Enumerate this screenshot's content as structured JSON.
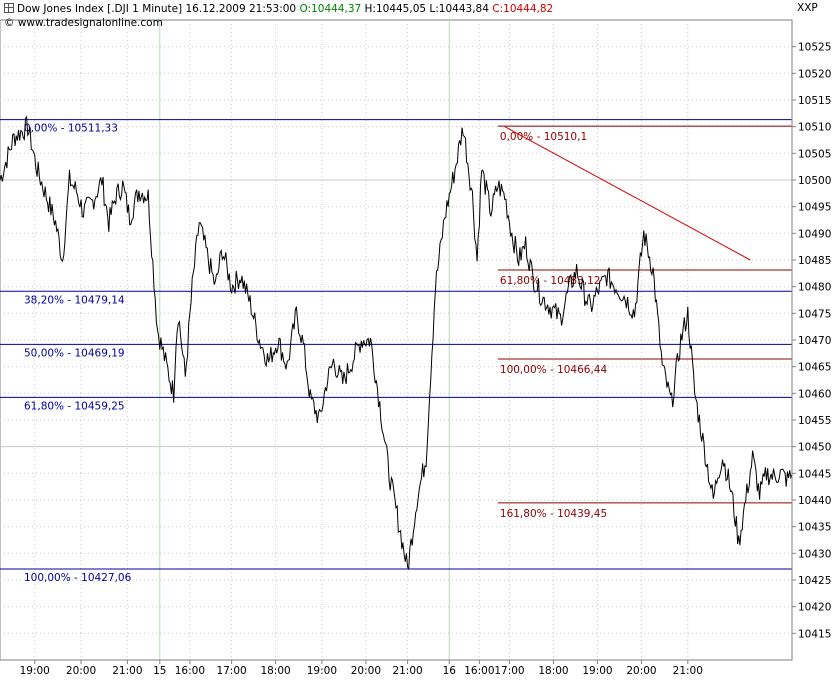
{
  "header": {
    "symbol": "Dow Jones Index [.DJI  1 Minute]",
    "datetime": "16.12.2009 21:53:00",
    "open": "O:10444,37",
    "high": "H:10445,05",
    "low": "L:10443,84",
    "close": "C:10444,82",
    "source": "© www.tradesignalonline.com",
    "corner_label": "XXP"
  },
  "colors": {
    "open": "#008000",
    "close": "#cc0000",
    "fib_blue": "#0000a0",
    "fib_red": "#8b0000",
    "trendline": "#d40000",
    "price": "#000000",
    "grid": "#c9c9c9",
    "session": "#b8dcb8"
  },
  "chart_data": {
    "type": "line",
    "title": "Dow Jones Index [.DJI 1 Minute]",
    "ylim": [
      10410,
      10530
    ],
    "y_ticks": [
      10415,
      10420,
      10425,
      10430,
      10435,
      10440,
      10445,
      10450,
      10455,
      10460,
      10465,
      10470,
      10475,
      10480,
      10485,
      10490,
      10495,
      10500,
      10505,
      10510,
      10515,
      10520,
      10525
    ],
    "x_ticks": [
      "19:00",
      "20:00",
      "21:00",
      "15",
      "16:00",
      "17:00",
      "18:00",
      "19:00",
      "20:00",
      "21:00",
      "16",
      "16:00",
      "17:00",
      "18:00",
      "19:00",
      "20:00",
      "21:00"
    ],
    "session_breaks": [
      "15",
      "16"
    ],
    "fib_retracement_blue": [
      {
        "label": "0,00% - 10511,33",
        "value": 10511.33
      },
      {
        "label": "38,20% - 10479,14",
        "value": 10479.14
      },
      {
        "label": "50,00% - 10469,19",
        "value": 10469.19
      },
      {
        "label": "61,80% - 10459,25",
        "value": 10459.25
      },
      {
        "label": "100,00% - 10427,06",
        "value": 10427.06
      }
    ],
    "fib_extension_red": [
      {
        "label": "0,00% - 10510,1",
        "value": 10510.1
      },
      {
        "label": "61,80% - 10483,12",
        "value": 10483.12
      },
      {
        "label": "100,00% - 10466,44",
        "value": 10466.44
      },
      {
        "label": "161,80% - 10439,45",
        "value": 10439.45
      }
    ],
    "trendline": {
      "start": {
        "x": 10.9,
        "y": 10510
      },
      "end": {
        "x": 16.2,
        "y": 10485
      }
    },
    "series": [
      {
        "x": [
          0,
          0.3,
          0.6,
          0.8,
          1.0,
          1.2,
          1.35,
          1.5,
          1.65,
          1.8,
          2.0,
          2.2,
          2.35,
          2.5,
          2.65,
          2.8,
          3.0,
          3.2,
          3.4,
          3.6,
          3.75,
          3.8,
          3.85,
          4.0,
          4.15,
          4.3,
          4.5,
          4.65,
          4.8,
          5.0,
          5.2,
          5.4,
          5.6,
          5.8,
          6.0,
          6.2,
          6.4,
          6.55,
          6.7,
          6.9,
          7.05,
          7.2,
          7.4,
          7.6,
          7.8,
          8.0,
          8.2,
          8.4,
          8.6,
          8.8,
          9.0,
          9.2,
          9.4,
          9.6,
          9.8,
          10.0,
          10.2,
          10.3,
          10.4,
          10.5,
          10.6,
          10.75,
          10.9,
          11.05,
          11.2,
          11.35,
          11.5,
          11.7,
          11.9,
          12.1,
          12.3,
          12.45,
          12.6,
          12.75,
          12.9,
          13.1,
          13.3,
          13.5,
          13.7,
          13.9,
          14.1,
          14.3,
          14.5,
          14.7,
          14.85,
          15.0,
          15.2,
          15.4,
          15.5,
          15.6,
          15.7,
          15.8,
          15.95,
          16.1,
          16.25,
          16.4,
          16.55,
          16.7,
          16.85,
          17.0,
          17.1
        ],
        "values": [
          10500,
          10508,
          10510,
          10502,
          10497,
          10492,
          10485,
          10500,
          10498,
          10494,
          10496,
          10500,
          10492,
          10497,
          10499,
          10493,
          10498,
          10497,
          10472,
          10465,
          10460,
          10470,
          10475,
          10463,
          10480,
          10492,
          10485,
          10480,
          10487,
          10480,
          10482,
          10477,
          10470,
          10466,
          10470,
          10465,
          10475,
          10469,
          10459,
          10455,
          10462,
          10466,
          10462,
          10466,
          10470,
          10470,
          10458,
          10445,
          10436,
          10427,
          10440,
          10448,
          10480,
          10493,
          10501,
          10510,
          10497,
          10485,
          10502,
          10498,
          10494,
          10499,
          10497,
          10490,
          10485,
          10488,
          10482,
          10478,
          10476,
          10474,
          10480,
          10483,
          10479,
          10476,
          10479,
          10482,
          10480,
          10478,
          10475,
          10490,
          10483,
          10465,
          10458,
          10470,
          10475,
          10460,
          10450,
          10440,
          10445,
          10448,
          10445,
          10441,
          10432,
          10440,
          10448,
          10441,
          10445,
          10444.37,
          10445.05,
          10443.84,
          10444.82
        ]
      }
    ]
  }
}
